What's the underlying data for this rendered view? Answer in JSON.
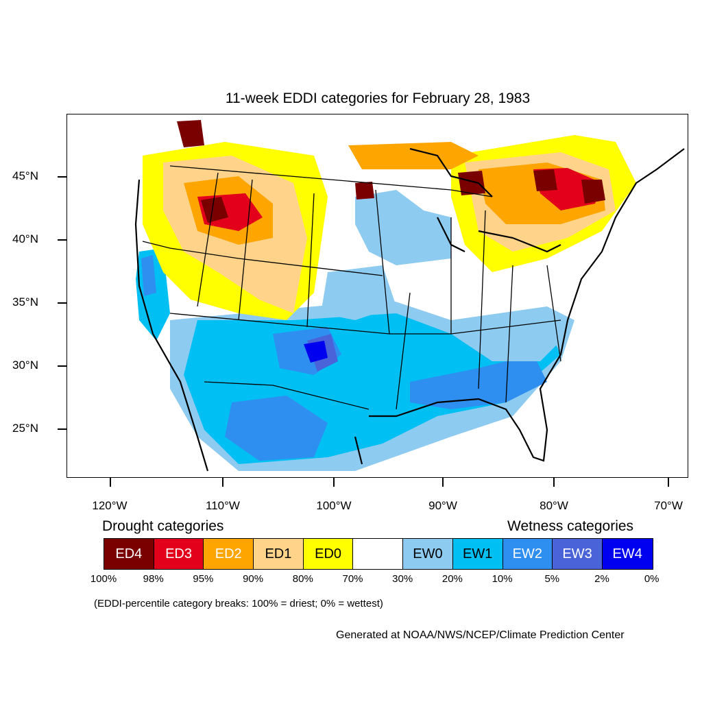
{
  "title": "11-week EDDI categories for February 28, 1983",
  "lat_labels": [
    "45°N",
    "40°N",
    "35°N",
    "30°N",
    "25°N"
  ],
  "lon_labels": [
    "120°W",
    "110°W",
    "100°W",
    "90°W",
    "80°W",
    "70°W"
  ],
  "legend": {
    "drought_heading": "Drought categories",
    "wetness_heading": "Wetness categories",
    "categories": [
      {
        "label": "ED4",
        "color": "#7a0000",
        "text_color": "#ffffff"
      },
      {
        "label": "ED3",
        "color": "#e3001b",
        "text_color": "#ffffff"
      },
      {
        "label": "ED2",
        "color": "#ffa500",
        "text_color": "#ffffff"
      },
      {
        "label": "ED1",
        "color": "#ffd48a",
        "text_color": "#000000"
      },
      {
        "label": "ED0",
        "color": "#ffff00",
        "text_color": "#000000"
      },
      {
        "label": "",
        "color": "#ffffff",
        "text_color": "#000000"
      },
      {
        "label": "EW0",
        "color": "#8ecbf0",
        "text_color": "#000000"
      },
      {
        "label": "EW1",
        "color": "#00bff3",
        "text_color": "#000000"
      },
      {
        "label": "EW2",
        "color": "#2e8ff0",
        "text_color": "#ffffff"
      },
      {
        "label": "EW3",
        "color": "#4a63d9",
        "text_color": "#ffffff"
      },
      {
        "label": "EW4",
        "color": "#0000f0",
        "text_color": "#ffffff"
      }
    ],
    "percentiles": [
      "100%",
      "98%",
      "95%",
      "90%",
      "80%",
      "70%",
      "30%",
      "20%",
      "10%",
      "5%",
      "2%",
      "0%"
    ]
  },
  "note": "(EDDI-percentile category breaks: 100% = driest; 0% = wettest)",
  "credit": "Generated at NOAA/NWS/NCEP/Climate Prediction Center"
}
